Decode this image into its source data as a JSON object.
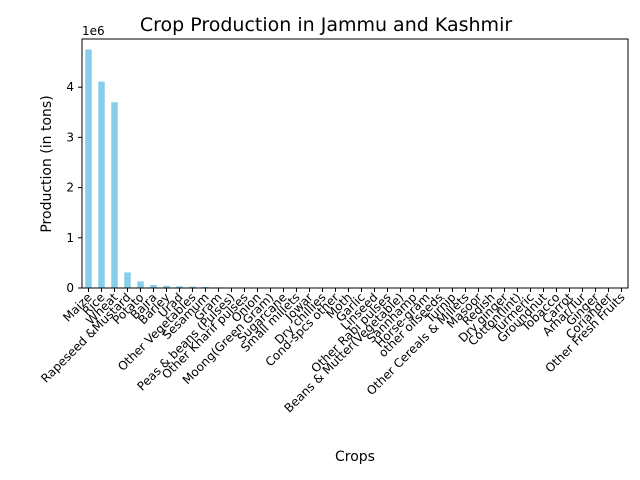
{
  "chart_data": {
    "type": "bar",
    "title": "Crop Production in Jammu and Kashmir",
    "xlabel": "Crops",
    "ylabel": "Production (in tons)",
    "y_offset_label": "1e6",
    "ylim": [
      0,
      4960000
    ],
    "y_ticks": [
      0,
      1000000,
      2000000,
      3000000,
      4000000
    ],
    "y_tick_labels": [
      "0",
      "1",
      "2",
      "3",
      "4"
    ],
    "bar_color": "#87ceeb",
    "grid": false,
    "legend": "none",
    "categories": [
      "Maize",
      "Rice",
      "Wheat",
      "Rapeseed &Mustard",
      "Potato",
      "Bajra",
      "Barley",
      "Urad",
      "Other Vegetables",
      "Sesamum",
      "Gram",
      "Peas & beans (Pulses)",
      "Other Kharif pulses",
      "Onion",
      "Moong(Green Gram)",
      "Sugarcane",
      "Small millets",
      "Jowar",
      "Dry chillies",
      "Cond-spcs other",
      "Moth",
      "Garlic",
      "Linseed",
      "Other Rabi pulses",
      "Beans & Mutter(Vegetable)",
      "Sannhamp",
      "Horse-gram",
      "other oilseeds",
      "Turnip",
      "Other Cereals & Millets",
      "Masoor",
      "Redish",
      "Dry ginger",
      "Cotton(lint)",
      "Turmeric",
      "Groundnut",
      "Tobacco",
      "Carrot",
      "Arhar/Tur",
      "Ginger",
      "Coriander",
      "Other Fresh Fruits"
    ],
    "values": [
      4750000,
      4110000,
      3700000,
      310000,
      130000,
      60000,
      45000,
      35000,
      28000,
      22000,
      12000,
      10000,
      8000,
      6000,
      5000,
      4000,
      3500,
      3000,
      2500,
      2000,
      1800,
      1600,
      1400,
      1200,
      1100,
      1000,
      900,
      800,
      700,
      600,
      500,
      450,
      400,
      350,
      300,
      250,
      200,
      150,
      100,
      80,
      60,
      40
    ]
  }
}
